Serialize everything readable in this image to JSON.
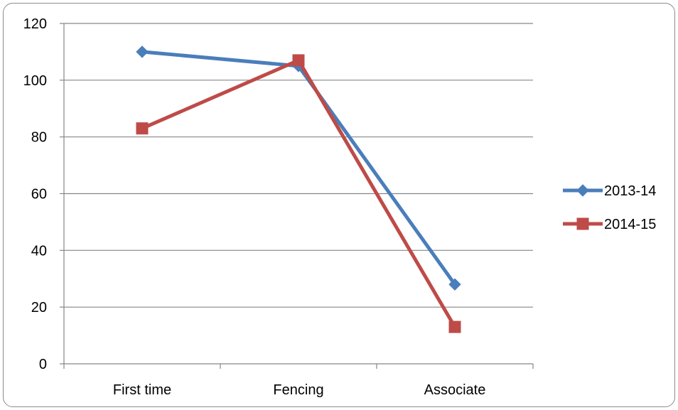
{
  "chart_data": {
    "type": "line",
    "title": "",
    "xlabel": "",
    "ylabel": "",
    "categories": [
      "First time",
      "Fencing",
      "Associate"
    ],
    "ylim": [
      0,
      120
    ],
    "yticks": [
      0,
      20,
      40,
      60,
      80,
      100,
      120
    ],
    "grid": true,
    "legend_position": "right",
    "series": [
      {
        "name": "2013-14",
        "values": [
          110,
          105,
          28
        ],
        "color": "#4a7ebb",
        "marker": "diamond"
      },
      {
        "name": "2014-15",
        "values": [
          83,
          107,
          13
        ],
        "color": "#be4b48",
        "marker": "square"
      }
    ]
  }
}
